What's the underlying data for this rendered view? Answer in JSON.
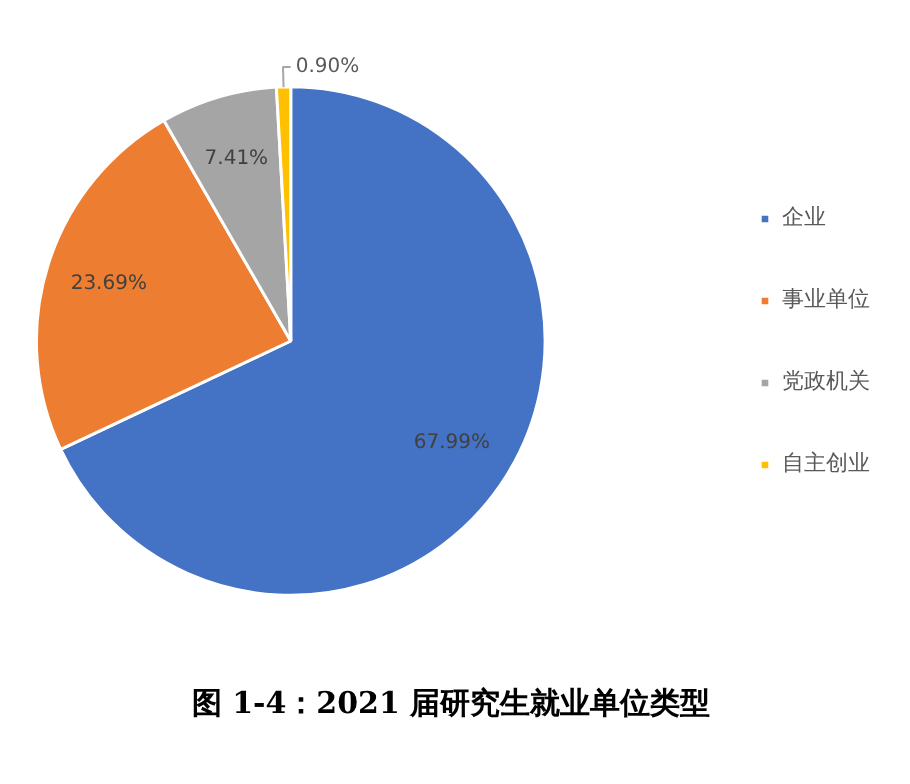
{
  "chart_data": {
    "type": "pie",
    "title": "图 1-4：2021 届研究生就业单位类型",
    "categories": [
      "企业",
      "事业单位",
      "党政机关",
      "自主创业"
    ],
    "values": [
      67.99,
      23.69,
      7.41,
      0.9
    ],
    "value_labels": [
      "67.99%",
      "23.69%",
      "7.41%",
      "0.90%"
    ],
    "colors": [
      "#4472c4",
      "#ed7d31",
      "#a5a5a5",
      "#ffc000"
    ],
    "legend": "right"
  }
}
